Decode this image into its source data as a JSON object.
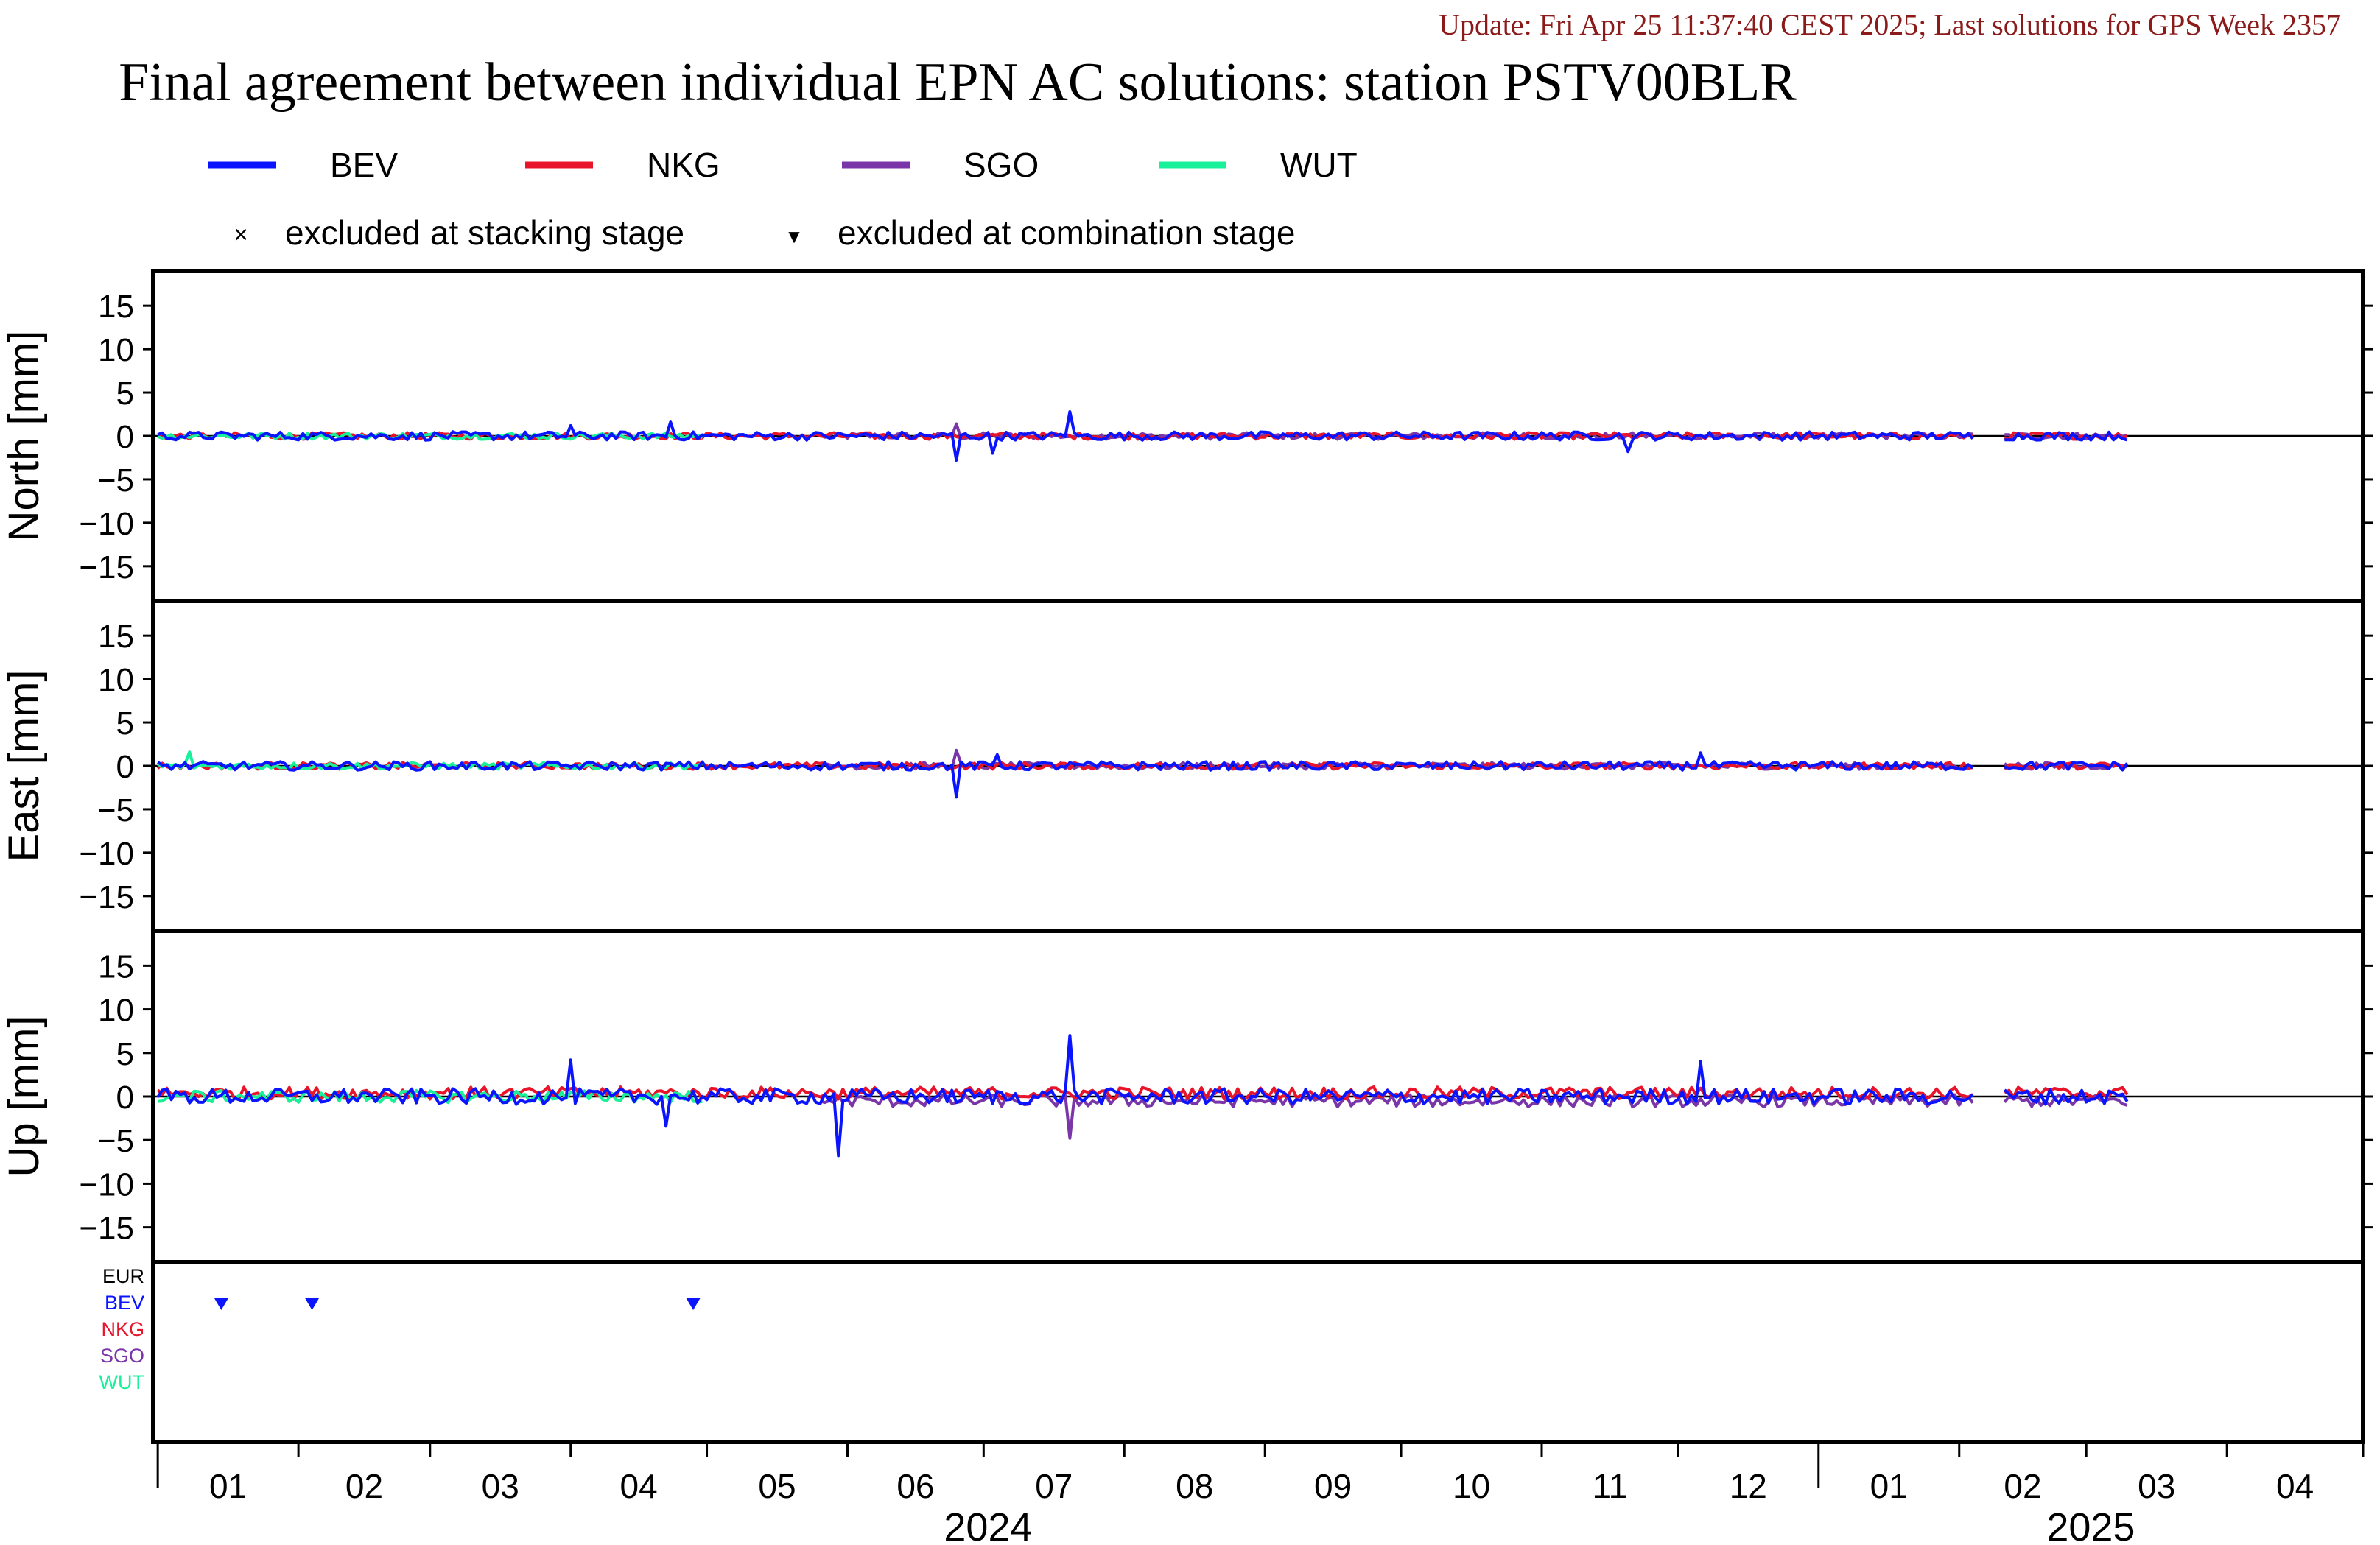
{
  "header": {
    "update_text": "Update: Fri Apr 25 11:37:40 CEST 2025; Last solutions for GPS Week 2357",
    "title": "Final agreement between individual EPN AC solutions: station PSTV00BLR",
    "update_color": "#8b1a1a"
  },
  "legend": {
    "series": [
      {
        "name": "BEV",
        "color": "#0a14ff"
      },
      {
        "name": "NKG",
        "color": "#e8142a"
      },
      {
        "name": "SGO",
        "color": "#7a36a8"
      },
      {
        "name": "WUT",
        "color": "#19f09a"
      }
    ],
    "markers": [
      {
        "symbol": "×",
        "label": "excluded at stacking stage"
      },
      {
        "symbol": "▼",
        "label": "excluded at combination stage"
      }
    ]
  },
  "chart_data": {
    "type": "line",
    "panels": [
      {
        "ylabel": "North [mm]",
        "yticks": [
          "15",
          "10",
          "5",
          "0",
          "−5",
          "−10",
          "−15"
        ],
        "spikes": [
          {
            "series": "BEV",
            "date": "2024-04-01",
            "value": 1.2
          },
          {
            "series": "BEV",
            "date": "2024-04-23",
            "value": 1.6
          },
          {
            "series": "BEV",
            "date": "2024-06-25",
            "value": -2.8
          },
          {
            "series": "SGO",
            "date": "2024-06-25",
            "value": 1.4
          },
          {
            "series": "BEV",
            "date": "2024-07-03",
            "value": -2.0
          },
          {
            "series": "BEV",
            "date": "2024-07-20",
            "value": 2.8
          },
          {
            "series": "BEV",
            "date": "2024-11-20",
            "value": -1.8
          }
        ]
      },
      {
        "ylabel": "East [mm]",
        "yticks": [
          "15",
          "10",
          "5",
          "0",
          "−5",
          "−10",
          "−15"
        ],
        "spikes": [
          {
            "series": "WUT",
            "date": "2024-01-08",
            "value": 1.6
          },
          {
            "series": "BEV",
            "date": "2024-06-25",
            "value": -3.6
          },
          {
            "series": "SGO",
            "date": "2024-06-25",
            "value": 1.8
          },
          {
            "series": "BEV",
            "date": "2024-07-04",
            "value": 1.3
          },
          {
            "series": "BEV",
            "date": "2024-12-06",
            "value": 1.5
          }
        ]
      },
      {
        "ylabel": "Up [mm]",
        "yticks": [
          "15",
          "10",
          "5",
          "0",
          "−5",
          "−10",
          "−15"
        ],
        "spikes": [
          {
            "series": "BEV",
            "date": "2024-04-01",
            "value": 4.2
          },
          {
            "series": "BEV",
            "date": "2024-04-22",
            "value": -3.4
          },
          {
            "series": "BEV",
            "date": "2024-05-30",
            "value": -6.8
          },
          {
            "series": "BEV",
            "date": "2024-07-20",
            "value": 7.0
          },
          {
            "series": "SGO",
            "date": "2024-07-20",
            "value": -4.8
          },
          {
            "series": "BEV",
            "date": "2024-12-06",
            "value": 4.0
          }
        ]
      }
    ],
    "ylim": [
      -19,
      19
    ],
    "series_noise_amplitude": {
      "BEV": 0.9,
      "NKG": 0.7,
      "SGO": 0.7,
      "WUT": 0.7
    },
    "series_coverage": {
      "BEV": [
        "2024-01-01",
        "2025-03-10"
      ],
      "NKG": [
        "2024-01-01",
        "2025-03-10"
      ],
      "SGO": [
        "2024-05-26",
        "2025-03-10"
      ],
      "WUT": [
        "2024-01-01",
        "2024-04-30"
      ]
    },
    "gap": [
      "2025-02-05",
      "2025-02-10"
    ],
    "exclusions": {
      "rows": [
        "EUR",
        "BEV",
        "NKG",
        "SGO",
        "WUT"
      ],
      "row_colors": [
        "#000000",
        "#0a14ff",
        "#e8142a",
        "#7a36a8",
        "#19f09a"
      ],
      "combination_stage": [
        {
          "row": "BEV",
          "date": "2024-01-15"
        },
        {
          "row": "BEV",
          "date": "2024-02-04"
        },
        {
          "row": "BEV",
          "date": "2024-04-28"
        }
      ]
    },
    "xaxis": {
      "range": [
        "2023-12-31",
        "2025-05-01"
      ],
      "month_labels": [
        "01",
        "02",
        "03",
        "04",
        "05",
        "06",
        "07",
        "08",
        "09",
        "10",
        "11",
        "12",
        "01",
        "02",
        "03",
        "04"
      ],
      "year_labels": [
        "2024",
        "2025"
      ]
    }
  }
}
